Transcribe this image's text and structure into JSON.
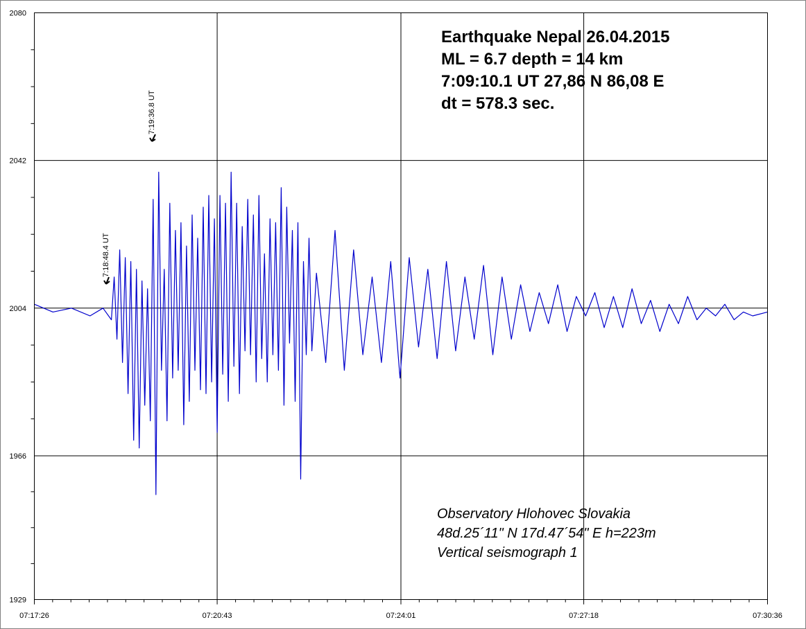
{
  "chart_data": {
    "type": "line",
    "title": "",
    "xlabel": "",
    "ylabel": "",
    "x_ticks": [
      "07:17:26",
      "07:20:43",
      "07:24:01",
      "07:27:18",
      "07:30:36"
    ],
    "xlim": [
      "07:17:26",
      "07:30:36"
    ],
    "y_ticks": [
      2080,
      2042,
      2004,
      1966,
      1929
    ],
    "ylim": [
      1929,
      2080
    ],
    "grid": true,
    "series_color": "#0000cc",
    "series": [
      {
        "x": [
          "07:17:26",
          "07:17:46",
          "07:18:06",
          "07:18:26",
          "07:18:40",
          "07:18:49",
          "07:18:52",
          "07:18:55",
          "07:18:58",
          "07:19:01",
          "07:19:04",
          "07:19:07",
          "07:19:10",
          "07:19:13",
          "07:19:16",
          "07:19:19",
          "07:19:22",
          "07:19:25",
          "07:19:28",
          "07:19:31",
          "07:19:34",
          "07:19:37",
          "07:19:40",
          "07:19:43",
          "07:19:46",
          "07:19:49",
          "07:19:52",
          "07:19:55",
          "07:19:58",
          "07:20:01",
          "07:20:04",
          "07:20:07",
          "07:20:10",
          "07:20:13",
          "07:20:16",
          "07:20:19",
          "07:20:22",
          "07:20:25",
          "07:20:28",
          "07:20:31",
          "07:20:34",
          "07:20:37",
          "07:20:40",
          "07:20:43",
          "07:20:46",
          "07:20:49",
          "07:20:52",
          "07:20:55",
          "07:20:58",
          "07:21:01",
          "07:21:04",
          "07:21:07",
          "07:21:10",
          "07:21:13",
          "07:21:16",
          "07:21:19",
          "07:21:22",
          "07:21:25",
          "07:21:28",
          "07:21:31",
          "07:21:34",
          "07:21:37",
          "07:21:40",
          "07:21:43",
          "07:21:46",
          "07:21:49",
          "07:21:52",
          "07:21:55",
          "07:21:58",
          "07:22:01",
          "07:22:04",
          "07:22:07",
          "07:22:10",
          "07:22:13",
          "07:22:16",
          "07:22:19",
          "07:22:22",
          "07:22:25",
          "07:22:30",
          "07:22:40",
          "07:22:50",
          "07:23:00",
          "07:23:10",
          "07:23:20",
          "07:23:30",
          "07:23:40",
          "07:23:50",
          "07:24:00",
          "07:24:10",
          "07:24:20",
          "07:24:30",
          "07:24:40",
          "07:24:50",
          "07:25:00",
          "07:25:10",
          "07:25:20",
          "07:25:30",
          "07:25:40",
          "07:25:50",
          "07:26:00",
          "07:26:10",
          "07:26:20",
          "07:26:30",
          "07:26:40",
          "07:26:50",
          "07:27:00",
          "07:27:10",
          "07:27:20",
          "07:27:30",
          "07:27:40",
          "07:27:50",
          "07:28:00",
          "07:28:10",
          "07:28:20",
          "07:28:30",
          "07:28:40",
          "07:28:50",
          "07:29:00",
          "07:29:10",
          "07:29:20",
          "07:29:30",
          "07:29:40",
          "07:29:50",
          "07:30:00",
          "07:30:10",
          "07:30:20",
          "07:30:36"
        ],
        "y": [
          2005,
          2003,
          2004,
          2002,
          2004,
          2001,
          2012,
          1996,
          2019,
          1990,
          2017,
          1982,
          2016,
          1970,
          2014,
          1968,
          2011,
          1979,
          2009,
          1975,
          2032,
          1956,
          2039,
          1988,
          2014,
          1975,
          2031,
          1986,
          2024,
          1988,
          2026,
          1974,
          2020,
          1980,
          2028,
          1988,
          2022,
          1983,
          2030,
          1982,
          2033,
          1985,
          2027,
          1972,
          2033,
          1987,
          2031,
          1980,
          2039,
          1989,
          2031,
          1982,
          2025,
          1993,
          2032,
          1992,
          2028,
          1985,
          2033,
          1991,
          2018,
          1985,
          2027,
          1992,
          2026,
          1988,
          2035,
          1979,
          2030,
          1995,
          2024,
          1980,
          2026,
          1960,
          2016,
          1992,
          2022,
          1993,
          2013,
          1990,
          2024,
          1988,
          2019,
          1992,
          2012,
          1990,
          2016,
          1986,
          2017,
          1994,
          2014,
          1991,
          2016,
          1993,
          2012,
          1996,
          2015,
          1992,
          2012,
          1996,
          2010,
          1998,
          2008,
          2000,
          2010,
          1998,
          2007,
          2002,
          2008,
          1999,
          2007,
          1999,
          2009,
          2000,
          2006,
          1998,
          2005,
          2000,
          2007,
          2001,
          2004,
          2002,
          2005,
          2001,
          2003,
          2002,
          2003
        ]
      }
    ],
    "annotations": [
      {
        "text": "7:18:48.4 UT",
        "x": "07:18:48",
        "y": 2004
      },
      {
        "text": "7:19:36.8 UT",
        "x": "07:19:37",
        "y": 2046
      }
    ]
  },
  "info": {
    "line1": "Earthquake Nepal  26.04.2015",
    "line2": "ML = 6.7   depth = 14 km",
    "line3": "7:09:10.1 UT   27,86 N   86,08 E",
    "line4": "dt = 578.3 sec."
  },
  "observatory": {
    "line1": "Observatory  Hlohovec   Slovakia",
    "line2": "48d.25´11\" N    17d.47´54\" E   h=223m",
    "line3": "Vertical seismograph 1"
  }
}
